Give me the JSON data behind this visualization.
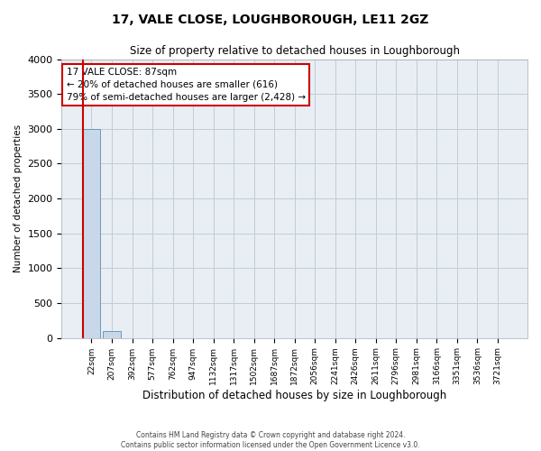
{
  "title1": "17, VALE CLOSE, LOUGHBOROUGH, LE11 2GZ",
  "title2": "Size of property relative to detached houses in Loughborough",
  "xlabel": "Distribution of detached houses by size in Loughborough",
  "ylabel": "Number of detached properties",
  "footnote1": "Contains HM Land Registry data © Crown copyright and database right 2024.",
  "footnote2": "Contains public sector information licensed under the Open Government Licence v3.0.",
  "bar_labels": [
    "22sqm",
    "207sqm",
    "392sqm",
    "577sqm",
    "762sqm",
    "947sqm",
    "1132sqm",
    "1317sqm",
    "1502sqm",
    "1687sqm",
    "1872sqm",
    "2056sqm",
    "2241sqm",
    "2426sqm",
    "2611sqm",
    "2796sqm",
    "2981sqm",
    "3166sqm",
    "3351sqm",
    "3536sqm",
    "3721sqm"
  ],
  "bar_values": [
    3000,
    100,
    0,
    0,
    0,
    0,
    0,
    0,
    0,
    0,
    0,
    0,
    0,
    0,
    0,
    0,
    0,
    0,
    0,
    0,
    0
  ],
  "bar_color": "#c8d8e8",
  "bar_edge_color": "#5b8db0",
  "grid_color": "#c0ccd8",
  "bg_color": "#e8eef4",
  "annotation_line1": "17 VALE CLOSE: 87sqm",
  "annotation_line2": "← 20% of detached houses are smaller (616)",
  "annotation_line3": "79% of semi-detached houses are larger (2,428) →",
  "annotation_box_color": "#ffffff",
  "annotation_box_edge": "#cc0000",
  "property_line_color": "#cc0000",
  "ylim": [
    0,
    4000
  ],
  "yticks": [
    0,
    500,
    1000,
    1500,
    2000,
    2500,
    3000,
    3500,
    4000
  ]
}
